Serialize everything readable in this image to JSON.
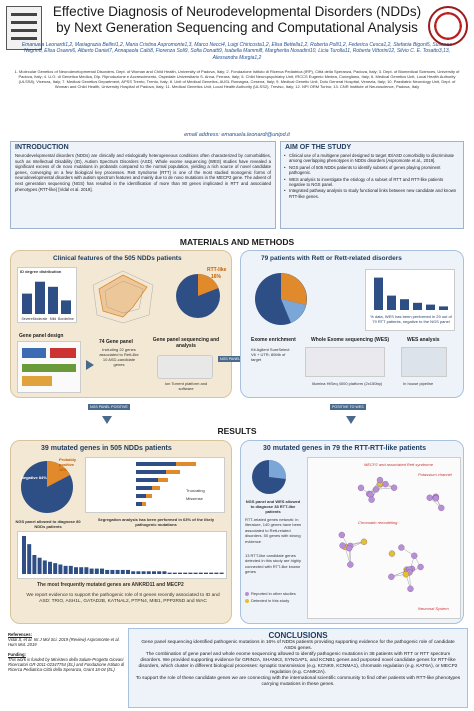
{
  "header": {
    "title": "Effective Diagnosis of Neurodevelopmental Disorders (NDDs) by Next Generation Sequencing and Computational Analysis",
    "authors": "Emanuela Leonardi1,2, Mariagrazia Bellini1,2, Maria Cristina Aspromonte1,3, Marco Necci4, Luigi Chiricosta1,2, Elisa Bettella1,2, Roberta Polli1,2, Federica Cesca1,2, Stefania Bigoni5, Susanna Negrin6, Elisa Osanni6, Alberto Daniel7, Annapaola Calò8, Fiorenza Soli9, Sofia Donatti9, Isabella Mammi8, Margherita Nosadini10, Licia Turolla11, Roberta Vittorini12, Silvio C. E. Tosatto3,13, Alessandra Murgia1,2",
    "affiliations": "1. Molecular Genetics of Neurodevelopmental Disorders, Dept. of Woman and Child Health, University of Padova, Italy; 2. Fondazione Istituto di Ricerca Pediatrica (IRP), Città della Speranza, Padova, Italy; 3. Dept. of Biomedical Sciences, University of Padova, Italy; 4. U.O. di Genetica Medica, Dip. Riproduzione e Accrescimento, Ospedale Universitario S. Anna, Ferrara, Italy; 5. Child Neuropsychiatry Unit, IRCCS Eugenio Medea, Conegliano, Italy; 6. Medical Genetics Unit, Local Health Authority (ULSS8), Vicenza, Italy; 7. Medical Genetics Department, APSS Trento, Trento, Italy; 8. Unit of Medical Genetics, AUSL Romagna, Cesena, Italy; 9. Medical Genetic Unit, Dolo General Hospital, Venezia, Italy; 10. Paediatric Neurology Unit, Dept. of Woman and Child Health, University Hospital of Padova, Italy; 11. Medical Genetics Unit, Local Health Authority (ULSS2), Treviso, Italy; 12. NPI ORM Torino; 13. CNR Institute of Neuroscience, Padova, Italy",
    "email": "email address: emanuela.leonardi@unipd.it"
  },
  "intro": {
    "heading": "INTRODUCTION",
    "text": "Neurodevelopmental disorders (NDDs) are clinically and etiologically heterogeneous conditions often characterized by comorbidities, such as Intellectual Disability (ID), Autism Spectrum Disorders (ASD). Whole exome sequencing (WES) studies have revealed a significant excess of de novo mutations in probands compared to the normal population, yielding a rich source of novel candidate genes, converging on a few biological key processes. Rett Syndrome (RTT) is one of the most studied monogenic forms of neurodevelopmental disorders with autism spectrum features and mainly due to de novo mutations in the MECP2 gene. The advent of next generation sequencing (NGS) has resulted in the identification of more than 80 genes implicated in RTT and associated phenotypes (RTT-like) [Vidal et al. 2019]."
  },
  "aim": {
    "heading": "AIM OF THE STUDY",
    "items": [
      "Clinical use of a multigene panel designed to target ID/ASD comorbidity to discriminate among overlapping phenotypes in NDDs disorders [Aspromonte et al., 2019].",
      "NGS panel of 505 NDDs patients to identify subsets of genes playing prominent pathogenic.",
      "WES analysis to investigate the etiology of a subset of RTT and RTT-like patients negative to NGS panel.",
      "Integrated pathway analysis to study functional links between new candidate and known RTT-like genes."
    ]
  },
  "methods": {
    "heading": "MATERIALS AND METHODS",
    "left_title": "Clinical features of the 505 NDDs patients",
    "id_degree": "ID degree distribution",
    "id_bars": [
      {
        "label": "Severe",
        "value": 60
      },
      {
        "label": "Moderate",
        "value": 95
      },
      {
        "label": "Mild",
        "value": 80
      },
      {
        "label": "Borderline",
        "value": 40
      }
    ],
    "rtt_like_label": "RTT-like",
    "rtt_like_pct": "16%",
    "panel_design": "Gene panel design",
    "gene_panel": "74 Gene panel",
    "gene_panel_detail": "Including 22 genes associated to Rett-like 10 ASD-candidate genes",
    "seq_title": "Gene panel sequencing and analysis",
    "ion_torrent": "Ion Torrent platform and software",
    "ngs_negative": "NGS PANEL NEGATIVE",
    "right_title": "79 patients with Rett or Rett-related disorders",
    "no_data_note": "% data, WES has been performed in 29 out of 79 RTT patients, negative to the NGS panel",
    "exome": "Exome enrichment",
    "exome_detail": "Kit Agilent SureSelect V6 + UTR; 80Mb of target",
    "wes_title": "Whole Exome sequencing (WES)",
    "wes_platform": "Illumina HiSeq 4000 platform (2x150bp)",
    "wes_analysis": "WES analysis",
    "in_house": "In house pipeline",
    "ngs_positive": "NGS PANEL POSITIVE",
    "positive_wes": "POSITIVE TO WES"
  },
  "results": {
    "heading": "RESULTS",
    "left_title": "39 mutated genes in 505 NDDs patients",
    "pie_neg": "Negative 84%",
    "pie_pos": "Probably positive 16%",
    "ngs_note": "NGS panel allowed to diagnose 80 NDDs patients",
    "legend_trunc": "Truncating",
    "legend_miss": "Missense",
    "segregation_note": "Segregation analysis has been performed in 63% of the likely pathogenic mutations",
    "most_frequent": "The most frequently mutated genes are ANKRD11 and MECP2",
    "recurrent_note": "We report evidence to support the pathogenic role of 8 genes recently associated to ID and ASD: TRIO, ASH1L, GATAD2B, KATNAL2, PTPN4, MIB1, PPP2R5D and WAC",
    "gene_bars": [
      28,
      22,
      14,
      12,
      10,
      9,
      8,
      7,
      6,
      6,
      5,
      5,
      5,
      4,
      4,
      4,
      3,
      3,
      3,
      3,
      3,
      2,
      2,
      2,
      2,
      2,
      2,
      2,
      1,
      1,
      1,
      1,
      1,
      1,
      1,
      1,
      1,
      1,
      1
    ],
    "right_title": "30 mutated genes in 79 the RTT-RTT-like patients",
    "wes_note": "NGS panel and WES allowed to diagnose 38 RTT-like patients",
    "network_note": "RTT-related genes network: in literature, 140 genes have been associated to Rett-related disorders. 50 genes with strong evidence",
    "candidate_note": "13 RTT-like candidate genes detected in this study are highly connected with RTT-like known genes",
    "legend_reported": "Reported in other studies",
    "legend_detected": "Detected in this study",
    "cluster_mecp2": "MECP2 and associated Rett syndrome",
    "cluster_potassium": "Potassium channel",
    "cluster_chromatin": "Chromatin remodeling",
    "cluster_neuronal": "Neuronal System"
  },
  "references": {
    "heading": "References:",
    "text": "Vidal S, et al. Int J Mol Sci. 2019 (Review) Aspromonte et al. Hum Mut. 2019",
    "funding_heading": "Funding:",
    "funding": "This work is funded by Ministero della Salute-Progetto Giovani Ricercatori GR-2011-02347754 (EL) and Fondazione Istituto di Ricerca Pediatrica-Città della Speranza, Grant 18-04 (EL)"
  },
  "conclusions": {
    "heading": "CONCLUSIONS",
    "text1": "Gene panel sequencing identified pathogenic mutations in 16% of NDDs patients providing supporting evidence for the pathogenic role of candidate ASDs genes.",
    "text2": "The combination of gene panel and whole exome sequencing allowed to identify pathogenic mutations in 38 patients with RTT or RTT spectrum disorders. We provided supporting evidence for GRIN2A, SHANK3, SYNGAP1, and KCNB1 genes and purposed novel candidate genes for RTT-like disorders, which cluster in different biological processes: synaptic transmission (e.g. KCNK9, KCNMA1), chromatin regulation (e.g. KAT6A), or MECP2 regulation (e.g. CAMK2A).",
    "text3": "To support the role of these candidate genes we are connecting with the international scientific community to find other patients with RTT-like phenotypes carrying mutations in these genes."
  },
  "colors": {
    "accent_blue": "#1d3a5e",
    "warm_panel": "#f3e8d4",
    "cool_panel": "#eef3f9",
    "bar_blue": "#2e4e86",
    "bar_orange": "#e08a2c"
  }
}
